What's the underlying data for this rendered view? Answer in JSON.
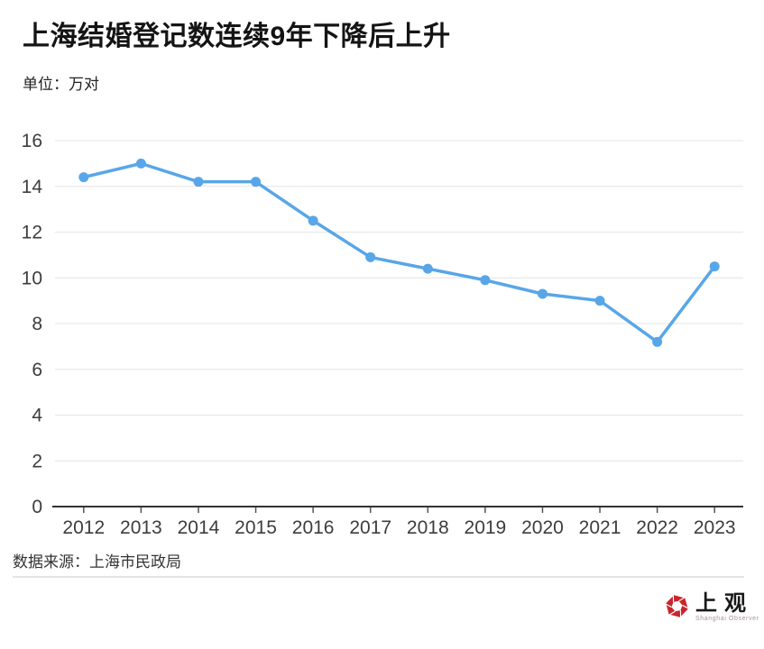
{
  "page": {
    "title": "上海结婚登记数连续9年下降后上升",
    "unit_label": "单位：万对",
    "source": "数据来源：上海市民政局"
  },
  "chart_data": {
    "type": "line",
    "title": "上海结婚登记数连续9年下降后上升",
    "xlabel": "",
    "ylabel": "万对",
    "categories": [
      "2012",
      "2013",
      "2014",
      "2015",
      "2016",
      "2017",
      "2018",
      "2019",
      "2020",
      "2021",
      "2022",
      "2023"
    ],
    "values": [
      14.4,
      15.0,
      14.2,
      14.2,
      12.5,
      10.9,
      10.4,
      9.9,
      9.3,
      9.0,
      7.2,
      10.5
    ],
    "ylim": [
      0,
      16
    ],
    "ytick_step": 2,
    "grid": true,
    "legend_position": "none",
    "line_color": "#58a6e8",
    "point_color": "#58a6e8"
  },
  "colors": {
    "grid": "#e4e4e4",
    "axis": "#333333",
    "tick": "#555555",
    "tick_label": "#3d3d3d"
  },
  "logo": {
    "name": "上观",
    "subtitle": "Shanghai Observer",
    "brand_color": "#c9252d"
  }
}
